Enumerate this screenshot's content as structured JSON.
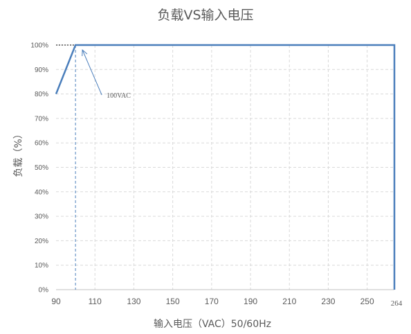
{
  "chart_data": {
    "type": "line",
    "title": "负载VS输入电压",
    "xlabel": "输入电压（VAC）50/60Hz",
    "ylabel": "负载（%）",
    "x_ticks": [
      "90",
      "110",
      "130",
      "150",
      "170",
      "190",
      "210",
      "230",
      "250",
      "264"
    ],
    "y_ticks": [
      "0%",
      "10%",
      "20%",
      "30%",
      "40%",
      "50%",
      "60%",
      "70%",
      "80%",
      "90%",
      "100%"
    ],
    "xlim": [
      90,
      264
    ],
    "ylim": [
      0,
      100
    ],
    "grid": true,
    "series": [
      {
        "x": [
          90,
          100,
          264,
          264
        ],
        "y": [
          80,
          100,
          100,
          0
        ]
      }
    ],
    "annotations": [
      {
        "text": "100VAC",
        "x": 100,
        "y": 100
      }
    ],
    "colors": {
      "line": "#4a7ebb",
      "grid": "#d9d9d9",
      "text": "#595959"
    }
  }
}
